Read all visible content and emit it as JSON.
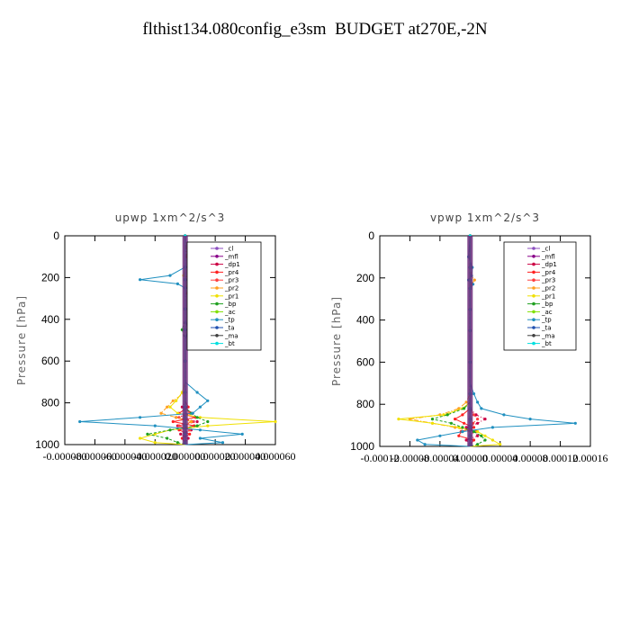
{
  "title": "flthist134.080config_e3sm  BUDGET at270E,-2N",
  "chart_data": [
    {
      "type": "line",
      "title": "upwp   1xm^2/s^3",
      "ylabel": "Pressure [hPa]",
      "ylim": [
        1000,
        0
      ],
      "y_ticks": [
        "0",
        "200",
        "400",
        "600",
        "800",
        "1000"
      ],
      "x_ticks": [
        "-0.000080",
        "-0.000060",
        "-0.000040",
        "-0.000020",
        "0.000000",
        "0.000020",
        "0.000040",
        "0.000060"
      ],
      "xlim": [
        -8e-05,
        6e-05
      ],
      "legend_position": "top-right",
      "y": [
        0,
        100,
        150,
        190,
        210,
        230,
        250,
        300,
        350,
        400,
        450,
        500,
        600,
        700,
        750,
        790,
        820,
        850,
        870,
        890,
        910,
        930,
        950,
        970,
        990,
        1000
      ],
      "series": [
        {
          "name": "_cl",
          "color": "#8c4fc0",
          "values": [
            0,
            0,
            0,
            0,
            0,
            0,
            0,
            0,
            0,
            0,
            0,
            0,
            0,
            0,
            0,
            0,
            0,
            0,
            0,
            0,
            0,
            0,
            0,
            0,
            0,
            0
          ]
        },
        {
          "name": "_mfl",
          "color": "#880088",
          "values": [
            0,
            0,
            0,
            0,
            0,
            0,
            0,
            0,
            0,
            0,
            0,
            0,
            0,
            0,
            0,
            0,
            0,
            0,
            0,
            0,
            0,
            0,
            0,
            0,
            0,
            0
          ]
        },
        {
          "name": "_dp1",
          "color": "#cc0044",
          "values": [
            0,
            0,
            0,
            0,
            0,
            0,
            0,
            0,
            0,
            0,
            0,
            0,
            0,
            0,
            0,
            0,
            -2e-06,
            5e-06,
            -6e-06,
            8e-06,
            -5e-06,
            4e-06,
            -3e-06,
            2e-06,
            0,
            0
          ]
        },
        {
          "name": "_pr4",
          "color": "#ff2020",
          "values": [
            0,
            0,
            0,
            0,
            0,
            0,
            0,
            0,
            0,
            0,
            0,
            0,
            0,
            0,
            0,
            0,
            2e-06,
            -4e-06,
            7e-06,
            -8e-06,
            6e-06,
            -4e-06,
            3e-06,
            -2e-06,
            0,
            0
          ]
        },
        {
          "name": "_pr3",
          "color": "#ff4040",
          "values": [
            0,
            0,
            0,
            0,
            0,
            0,
            0,
            0,
            0,
            0,
            0,
            0,
            0,
            0,
            0,
            0,
            0,
            3e-06,
            -4e-06,
            5e-06,
            -4e-06,
            3e-06,
            0,
            0,
            0,
            0
          ]
        },
        {
          "name": "_pr2",
          "color": "#ffa020",
          "values": [
            0,
            1e-06,
            2e-06,
            5e-06,
            1.2e-05,
            5e-06,
            2e-06,
            0,
            0,
            0,
            0,
            0,
            0,
            0,
            0,
            -8e-06,
            -1.2e-05,
            -1.6e-05,
            -6e-06,
            4e-06,
            0,
            0,
            0,
            0,
            0,
            0
          ]
        },
        {
          "name": "_pr1",
          "color": "#f0e000",
          "values": [
            0,
            0,
            0,
            -1e-06,
            6e-06,
            2e-06,
            0,
            0,
            0,
            0,
            0,
            0,
            0,
            0,
            -2e-06,
            -6e-06,
            -1e-05,
            -5e-06,
            1e-05,
            6e-05,
            1.5e-05,
            -1e-05,
            -2e-05,
            -3e-05,
            -2e-05,
            0
          ]
        },
        {
          "name": "_bp",
          "color": "#20a020",
          "values": [
            0,
            0,
            0,
            0,
            0,
            0,
            0,
            0,
            0,
            0,
            -2e-06,
            0,
            0,
            0,
            0,
            0,
            0,
            4e-06,
            8e-06,
            1.5e-05,
            8e-06,
            -1e-05,
            -2.5e-05,
            -1.2e-05,
            -5e-06,
            0
          ]
        },
        {
          "name": "_ac",
          "color": "#80e000",
          "values": [
            0,
            0,
            0,
            0,
            0,
            0,
            0,
            0,
            0,
            0,
            0,
            0,
            0,
            0,
            0,
            0,
            0,
            0,
            0,
            0,
            0,
            0,
            0,
            0,
            0,
            0
          ]
        },
        {
          "name": "_tp",
          "color": "#2090c0",
          "values": [
            0,
            0,
            0,
            -1e-05,
            -3e-05,
            -5e-06,
            0,
            0,
            0,
            0,
            2e-06,
            0,
            0,
            0,
            8e-06,
            1.5e-05,
            1e-05,
            5e-06,
            -3e-05,
            -7e-05,
            -2e-05,
            1e-05,
            3.8e-05,
            1e-05,
            2.5e-05,
            0
          ]
        },
        {
          "name": "_ta",
          "color": "#2050b0",
          "values": [
            0,
            0,
            0,
            0,
            0,
            0,
            0,
            0,
            0,
            0,
            0,
            0,
            0,
            0,
            0,
            0,
            0,
            0,
            0,
            0,
            0,
            0,
            0,
            0,
            0,
            0
          ]
        },
        {
          "name": "_ma",
          "color": "#404040",
          "values": [
            0,
            0,
            0,
            0,
            0,
            0,
            0,
            0,
            0,
            0,
            0,
            0,
            0,
            0,
            0,
            0,
            0,
            0,
            0,
            0,
            0,
            0,
            0,
            0,
            0,
            0
          ]
        },
        {
          "name": "_bt",
          "color": "#00e0e0",
          "values": [
            0,
            0,
            0,
            0,
            0,
            0,
            0,
            0,
            0,
            0,
            0,
            0,
            0,
            0,
            0,
            0,
            0,
            0,
            0,
            0,
            0,
            0,
            0,
            0,
            0,
            0
          ]
        }
      ]
    },
    {
      "type": "line",
      "title": "vpwp   1xm^2/s^3",
      "ylabel": "Pressure [hPa]",
      "ylim": [
        1000,
        0
      ],
      "y_ticks": [
        "0",
        "200",
        "400",
        "600",
        "800",
        "1000"
      ],
      "x_ticks": [
        "-0.00012",
        "-0.00008",
        "-0.00004",
        "0.00000",
        "0.00004",
        "0.00008",
        "0.00012",
        "0.00016"
      ],
      "xlim": [
        -0.00012,
        0.00016
      ],
      "legend_position": "top-right",
      "y": [
        0,
        100,
        150,
        190,
        210,
        230,
        250,
        300,
        350,
        400,
        450,
        500,
        600,
        700,
        750,
        790,
        820,
        850,
        870,
        890,
        910,
        930,
        950,
        970,
        990,
        1000
      ],
      "series": [
        {
          "name": "_cl",
          "color": "#8c4fc0",
          "values": [
            0,
            0,
            0,
            0,
            0,
            0,
            0,
            0,
            0,
            0,
            0,
            0,
            0,
            0,
            0,
            0,
            0,
            0,
            0,
            0,
            0,
            0,
            0,
            0,
            0,
            0
          ]
        },
        {
          "name": "_mfl",
          "color": "#880088",
          "values": [
            0,
            0,
            0,
            0,
            0,
            0,
            0,
            0,
            0,
            0,
            0,
            0,
            0,
            0,
            0,
            0,
            0,
            0,
            0,
            0,
            0,
            0,
            0,
            0,
            0,
            0
          ]
        },
        {
          "name": "_dp1",
          "color": "#cc0044",
          "values": [
            0,
            0,
            0,
            0,
            0,
            0,
            0,
            0,
            0,
            0,
            0,
            0,
            0,
            0,
            0,
            0,
            0,
            8e-06,
            2e-05,
            1e-05,
            -5e-06,
            8e-06,
            1e-05,
            -5e-06,
            0,
            0
          ]
        },
        {
          "name": "_pr4",
          "color": "#ff2020",
          "values": [
            0,
            0,
            0,
            0,
            0,
            0,
            0,
            0,
            0,
            0,
            0,
            0,
            0,
            0,
            0,
            0,
            0,
            -1e-05,
            -2e-05,
            -8e-06,
            5e-06,
            -1.2e-05,
            -1.5e-05,
            5e-06,
            0,
            0
          ]
        },
        {
          "name": "_pr3",
          "color": "#ff4040",
          "values": [
            0,
            0,
            0,
            0,
            0,
            0,
            0,
            0,
            0,
            0,
            0,
            0,
            0,
            0,
            0,
            0,
            0,
            5e-06,
            1e-05,
            4e-06,
            0,
            5e-06,
            0,
            0,
            0,
            0
          ]
        },
        {
          "name": "_pr2",
          "color": "#ffa020",
          "values": [
            0,
            0,
            0,
            2e-06,
            6e-06,
            2e-06,
            0,
            0,
            0,
            0,
            0,
            0,
            0,
            0,
            0,
            -5e-06,
            -1.5e-05,
            -4e-05,
            -8e-05,
            -5e-05,
            -2e-05,
            0,
            0,
            0,
            0,
            0
          ]
        },
        {
          "name": "_pr1",
          "color": "#f0e000",
          "values": [
            0,
            0,
            0,
            0,
            0,
            0,
            0,
            0,
            0,
            0,
            0,
            0,
            0,
            0,
            0,
            0,
            -1e-05,
            -3.5e-05,
            -9.5e-05,
            -5e-05,
            -1.5e-05,
            1e-05,
            2e-05,
            3e-05,
            4e-05,
            0
          ]
        },
        {
          "name": "_bp",
          "color": "#20a020",
          "values": [
            0,
            0,
            0,
            0,
            0,
            0,
            0,
            0,
            0,
            0,
            0,
            0,
            0,
            0,
            0,
            0,
            -8e-06,
            -3e-05,
            -5e-05,
            -2.5e-05,
            -1e-05,
            5e-06,
            1.5e-05,
            2e-05,
            1e-05,
            0
          ]
        },
        {
          "name": "_ac",
          "color": "#80e000",
          "values": [
            0,
            0,
            0,
            0,
            0,
            0,
            0,
            0,
            0,
            0,
            0,
            0,
            0,
            0,
            0,
            0,
            0,
            0,
            0,
            0,
            0,
            0,
            0,
            0,
            0,
            0
          ]
        },
        {
          "name": "_tp",
          "color": "#2090c0",
          "values": [
            0,
            -2e-06,
            3e-06,
            2e-06,
            -2e-06,
            4e-06,
            0,
            0,
            0,
            0,
            0,
            0,
            0,
            0,
            5e-06,
            1e-05,
            1.5e-05,
            4.5e-05,
            8e-05,
            0.00014,
            3e-05,
            -1e-05,
            -4e-05,
            -7e-05,
            -6e-05,
            0
          ]
        },
        {
          "name": "_ta",
          "color": "#2050b0",
          "values": [
            0,
            0,
            0,
            0,
            0,
            0,
            0,
            0,
            0,
            0,
            0,
            0,
            0,
            0,
            0,
            0,
            0,
            0,
            0,
            0,
            0,
            0,
            0,
            0,
            0,
            0
          ]
        },
        {
          "name": "_ma",
          "color": "#404040",
          "values": [
            0,
            0,
            0,
            0,
            0,
            0,
            0,
            0,
            0,
            0,
            0,
            0,
            0,
            0,
            0,
            0,
            0,
            0,
            0,
            0,
            0,
            0,
            0,
            0,
            0,
            0
          ]
        },
        {
          "name": "_bt",
          "color": "#00e0e0",
          "values": [
            0,
            0,
            0,
            0,
            0,
            0,
            0,
            0,
            0,
            0,
            0,
            0,
            0,
            0,
            0,
            0,
            0,
            0,
            0,
            0,
            0,
            0,
            0,
            0,
            0,
            0
          ]
        }
      ]
    }
  ]
}
